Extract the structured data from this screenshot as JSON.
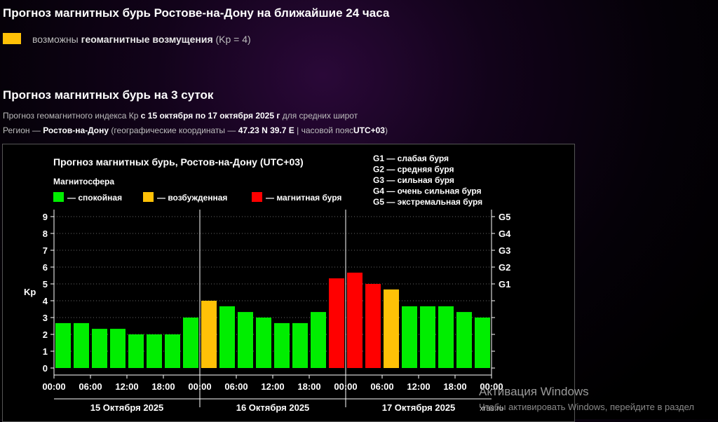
{
  "header": {
    "title": "Прогноз магнитных бурь Ростове-на-Дону на ближайшие 24 часа",
    "warning": {
      "color": "#ffc107",
      "prefix": "возможны",
      "bold": "геомагнитные возмущения",
      "suffix": "(Kp = 4)"
    }
  },
  "section": {
    "title": "Прогноз магнитных бурь на 3 суток",
    "line1": {
      "prefix": "Прогноз геомагнитного индекса Кр",
      "bold": "с 15 октября по 17 октября 2025 г",
      "suffix": "для средних широт"
    },
    "line2": {
      "prefix": "Регион —",
      "region": "Ростов-на-Дону",
      "mid": "(географические координаты —",
      "coords": "47.23 N 39.7 E",
      "tz_prefix": "| часовой пояс",
      "tz": "UTC+03",
      "close": ")"
    }
  },
  "chart_data": {
    "type": "bar",
    "title": "Прогноз магнитных бурь, Ростов-на-Дону (UTC+03)",
    "legend_title": "Магнитосфера",
    "legend": [
      {
        "label": "— спокойная",
        "color": "#00ee00"
      },
      {
        "label": "— возбужденная",
        "color": "#ffc107"
      },
      {
        "label": "— магнитная буря",
        "color": "#ff0000"
      }
    ],
    "g_legend": [
      "G1 — слабая буря",
      "G2 — средняя буря",
      "G3 — сильная буря",
      "G4 — очень сильная буря",
      "G5 — экстремальная буря"
    ],
    "ylabel": "Kp",
    "ylim": [
      0,
      9
    ],
    "yticks": [
      "0",
      "1",
      "2",
      "3",
      "4",
      "5",
      "6",
      "7",
      "8",
      "9"
    ],
    "right_ticks": [
      {
        "value": 5,
        "label": "G1"
      },
      {
        "value": 6,
        "label": "G2"
      },
      {
        "value": 7,
        "label": "G3"
      },
      {
        "value": 8,
        "label": "G4"
      },
      {
        "value": 9,
        "label": "G5"
      }
    ],
    "xtick_labels": [
      "00:00",
      "06:00",
      "12:00",
      "18:00",
      "00:00",
      "06:00",
      "12:00",
      "18:00",
      "00:00",
      "06:00",
      "12:00",
      "18:00",
      "00:00"
    ],
    "days": [
      "15 Октября 2025",
      "16 Октября 2025",
      "17 Октября 2025"
    ],
    "grid": true,
    "values": [
      2.67,
      2.67,
      2.33,
      2.33,
      2.0,
      2.0,
      2.0,
      3.0,
      4.0,
      3.67,
      3.33,
      3.0,
      2.67,
      2.67,
      3.33,
      5.33,
      5.67,
      5.0,
      4.67,
      3.67,
      3.67,
      3.67,
      3.33,
      3.0
    ],
    "levels": [
      "q",
      "q",
      "q",
      "q",
      "q",
      "q",
      "q",
      "q",
      "a",
      "q",
      "q",
      "q",
      "q",
      "q",
      "q",
      "s",
      "s",
      "s",
      "a",
      "q",
      "q",
      "q",
      "q",
      "q"
    ],
    "level_colors": {
      "q": "#00ee00",
      "a": "#ffc107",
      "s": "#ff0000"
    }
  },
  "watermark": {
    "line1": "Активация Windows",
    "line2": "Чтобы активировать Windows, перейдите в раздел",
    "site": "xras.ru"
  }
}
